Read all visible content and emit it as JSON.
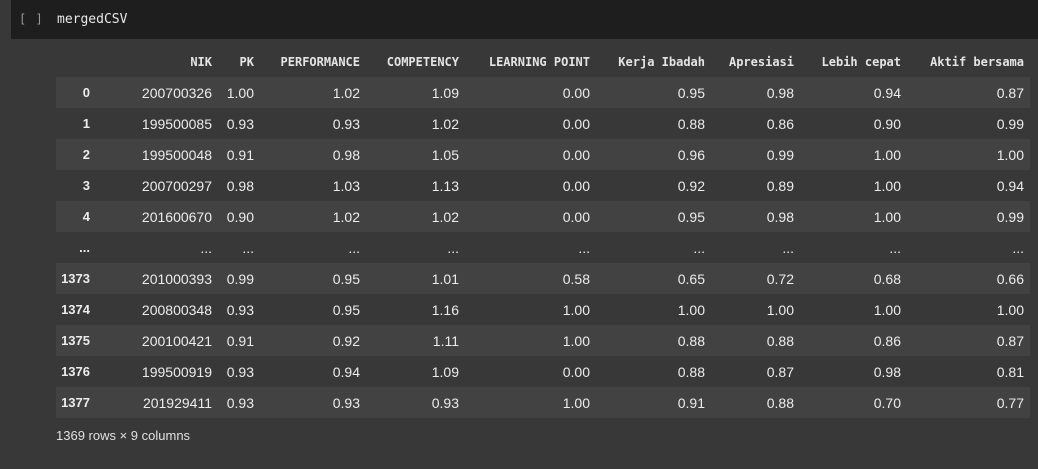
{
  "cell": {
    "run_indicator": "[ ]",
    "code": "mergedCSV"
  },
  "table": {
    "columns": [
      "NIK",
      "PK",
      "PERFORMANCE",
      "COMPETENCY",
      "LEARNING POINT",
      "Kerja Ibadah",
      "Apresiasi",
      "Lebih cepat",
      "Aktif bersama"
    ],
    "rows": [
      {
        "index": "0",
        "cells": [
          "200700326",
          "1.00",
          "1.02",
          "1.09",
          "0.00",
          "0.95",
          "0.98",
          "0.94",
          "0.87"
        ]
      },
      {
        "index": "1",
        "cells": [
          "199500085",
          "0.93",
          "0.93",
          "1.02",
          "0.00",
          "0.88",
          "0.86",
          "0.90",
          "0.99"
        ]
      },
      {
        "index": "2",
        "cells": [
          "199500048",
          "0.91",
          "0.98",
          "1.05",
          "0.00",
          "0.96",
          "0.99",
          "1.00",
          "1.00"
        ]
      },
      {
        "index": "3",
        "cells": [
          "200700297",
          "0.98",
          "1.03",
          "1.13",
          "0.00",
          "0.92",
          "0.89",
          "1.00",
          "0.94"
        ]
      },
      {
        "index": "4",
        "cells": [
          "201600670",
          "0.90",
          "1.02",
          "1.02",
          "0.00",
          "0.95",
          "0.98",
          "1.00",
          "0.99"
        ]
      },
      {
        "index": "...",
        "cells": [
          "...",
          "...",
          "...",
          "...",
          "...",
          "...",
          "...",
          "...",
          "..."
        ]
      },
      {
        "index": "1373",
        "cells": [
          "201000393",
          "0.99",
          "0.95",
          "1.01",
          "0.58",
          "0.65",
          "0.72",
          "0.68",
          "0.66"
        ]
      },
      {
        "index": "1374",
        "cells": [
          "200800348",
          "0.93",
          "0.95",
          "1.16",
          "1.00",
          "1.00",
          "1.00",
          "1.00",
          "1.00"
        ]
      },
      {
        "index": "1375",
        "cells": [
          "200100421",
          "0.91",
          "0.92",
          "1.11",
          "1.00",
          "0.88",
          "0.88",
          "0.86",
          "0.87"
        ]
      },
      {
        "index": "1376",
        "cells": [
          "199500919",
          "0.93",
          "0.94",
          "1.09",
          "0.00",
          "0.88",
          "0.87",
          "0.98",
          "0.81"
        ]
      },
      {
        "index": "1377",
        "cells": [
          "201929411",
          "0.93",
          "0.93",
          "0.93",
          "1.00",
          "0.91",
          "0.88",
          "0.70",
          "0.77"
        ]
      }
    ]
  },
  "summary": "1369 rows × 9 columns"
}
